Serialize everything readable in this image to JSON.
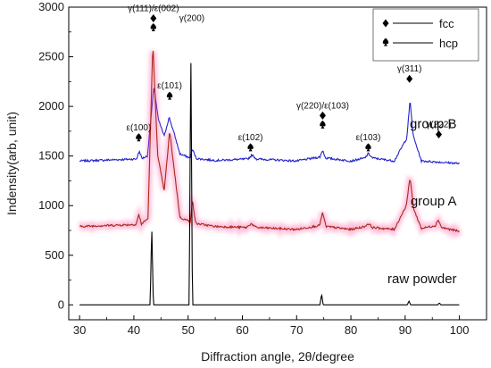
{
  "chart_data": {
    "type": "line",
    "xlabel": "Diffraction angle, 2θ/degree",
    "ylabel": "Indensity(arb, unit)",
    "xlim": [
      28,
      105
    ],
    "ylim": [
      -150,
      3000
    ],
    "xticks": [
      30,
      40,
      50,
      60,
      70,
      80,
      90,
      100
    ],
    "yticks": [
      0,
      500,
      1000,
      1500,
      2000,
      2500,
      3000
    ],
    "grid": false,
    "legend": {
      "placement": "top-right",
      "entries": [
        {
          "label": "fcc",
          "marker": "diamond"
        },
        {
          "label": "hcp",
          "marker": "spade"
        }
      ]
    },
    "series": [
      {
        "name": "group B",
        "color": "#2222cc",
        "baseline": 1450,
        "x": [
          30,
          40.5,
          41.0,
          41.5,
          42.5,
          43.7,
          44.5,
          45.6,
          46.5,
          47.3,
          48.5,
          50.4,
          50.8,
          51.5,
          55,
          61.0,
          61.8,
          62.6,
          70,
          74.3,
          74.8,
          75.3,
          80,
          82.6,
          83.2,
          84.0,
          88,
          90.3,
          90.9,
          91.5,
          93,
          100
        ],
        "y": [
          1450,
          1470,
          1550,
          1475,
          1500,
          2200,
          1870,
          1700,
          1890,
          1750,
          1520,
          1480,
          1570,
          1475,
          1455,
          1470,
          1510,
          1470,
          1450,
          1490,
          1560,
          1480,
          1450,
          1480,
          1525,
          1480,
          1450,
          1680,
          2060,
          1700,
          1450,
          1425
        ]
      },
      {
        "name": "group A",
        "color": "#aa2a1a",
        "baseline": 790,
        "x": [
          30,
          40.4,
          40.9,
          41.4,
          42.6,
          43.5,
          44.4,
          45.6,
          46.6,
          47.4,
          48.5,
          50.4,
          50.8,
          51.4,
          55,
          60.8,
          61.6,
          62.5,
          70,
          74.2,
          74.8,
          75.4,
          80,
          82.6,
          83.2,
          84.0,
          88,
          90.2,
          90.9,
          91.6,
          93,
          95.6,
          96.1,
          96.7,
          100
        ],
        "y": [
          790,
          810,
          910,
          815,
          870,
          2630,
          1500,
          1150,
          1750,
          1380,
          880,
          840,
          1050,
          820,
          790,
          780,
          820,
          780,
          760,
          800,
          930,
          790,
          760,
          790,
          820,
          780,
          760,
          1000,
          1280,
          960,
          770,
          800,
          860,
          780,
          740
        ]
      },
      {
        "name": "raw powder",
        "color": "#000000",
        "baseline": 0,
        "x": [
          30,
          43.0,
          43.3,
          43.6,
          50.2,
          50.5,
          50.8,
          74.3,
          74.6,
          74.9,
          90.4,
          90.7,
          91.0,
          96.0,
          96.3,
          96.6,
          100
        ],
        "y": [
          0,
          0,
          790,
          0,
          0,
          2610,
          0,
          0,
          110,
          0,
          0,
          40,
          0,
          0,
          20,
          0,
          0
        ]
      }
    ],
    "annotations": [
      {
        "text": "ε(100)",
        "x": 40.9,
        "y": 1760,
        "marker": "spade"
      },
      {
        "text": "γ(111)/ε(002)",
        "x": 43.6,
        "y": 2960,
        "marker": "diamond+spade"
      },
      {
        "text": "γ(200)",
        "x": 50.7,
        "y": 2860,
        "marker": ""
      },
      {
        "text": "ε(101)",
        "x": 46.6,
        "y": 2180,
        "marker": "spade"
      },
      {
        "text": "ε(102)",
        "x": 61.5,
        "y": 1660,
        "marker": "spade"
      },
      {
        "text": "γ(220)/ε(103)",
        "x": 74.8,
        "y": 1980,
        "marker": "diamond+spade"
      },
      {
        "text": "ε(103)",
        "x": 83.2,
        "y": 1660,
        "marker": "spade"
      },
      {
        "text": "γ(311)",
        "x": 90.8,
        "y": 2350,
        "marker": "diamond"
      },
      {
        "text": "γ(222)",
        "x": 96.2,
        "y": 1790,
        "marker": "diamond"
      }
    ],
    "curve_labels": [
      {
        "text": "group B",
        "x": 99.5,
        "y": 1780
      },
      {
        "text": "group A",
        "x": 99.5,
        "y": 1000
      },
      {
        "text": "raw powder",
        "x": 99.5,
        "y": 220
      }
    ]
  }
}
